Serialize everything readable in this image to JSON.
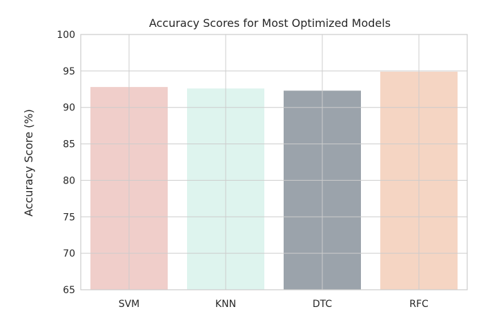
{
  "chart_data": {
    "type": "bar",
    "title": "Accuracy Scores for Most Optimized Models",
    "xlabel": "",
    "ylabel": "Accuracy Score (%)",
    "categories": [
      "SVM",
      "KNN",
      "DTC",
      "RFC"
    ],
    "values": [
      92.8,
      92.6,
      92.3,
      94.9
    ],
    "colors": [
      "#e8b4ad",
      "#cdeee5",
      "#66717e",
      "#f0bfa3"
    ],
    "bar_opacity": 0.65,
    "ylim": [
      65,
      100
    ],
    "yticks": [
      65,
      70,
      75,
      80,
      85,
      90,
      95,
      100
    ],
    "grid": true
  }
}
